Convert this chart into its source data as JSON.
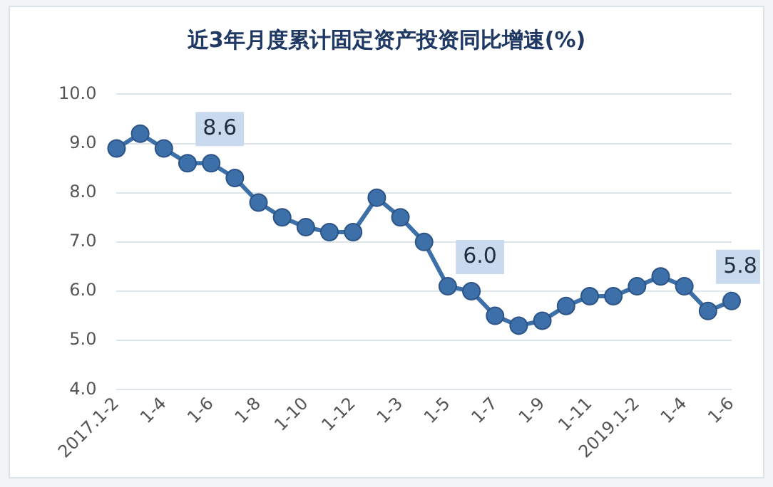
{
  "chart_data": {
    "type": "line",
    "title": "近3年月度累计固定资产投资同比增速(%)",
    "categories": [
      "2017.1-2",
      null,
      "1-4",
      null,
      "1-6",
      null,
      "1-8",
      null,
      "1-10",
      null,
      "1-12",
      null,
      "1-3",
      null,
      "1-5",
      null,
      "1-7",
      null,
      "1-9",
      null,
      "1-11",
      null,
      "2019.1-2",
      null,
      "1-4",
      null,
      "1-6"
    ],
    "series": [
      {
        "color": "#3d6fa8",
        "values": [
          8.9,
          9.2,
          8.9,
          8.6,
          8.6,
          8.3,
          7.8,
          7.5,
          7.3,
          7.2,
          7.2,
          7.9,
          7.5,
          7.0,
          6.1,
          6.0,
          5.5,
          5.3,
          5.4,
          5.7,
          5.9,
          5.9,
          6.1,
          6.3,
          6.1,
          5.6,
          5.8
        ],
        "value_labels": [
          null,
          null,
          null,
          null,
          "8.6",
          null,
          null,
          null,
          null,
          null,
          null,
          null,
          null,
          null,
          null,
          "6.0",
          null,
          null,
          null,
          null,
          null,
          null,
          null,
          null,
          null,
          null,
          "5.8"
        ]
      }
    ],
    "ylim": [
      4,
      10
    ],
    "yticks": [
      {
        "value": 4,
        "label": "4.0"
      },
      {
        "value": 5,
        "label": "5.0"
      },
      {
        "value": 6,
        "label": "6.0"
      },
      {
        "value": 7,
        "label": "7.0"
      },
      {
        "value": 8,
        "label": "8.0"
      },
      {
        "value": 9,
        "label": "9.0"
      },
      {
        "value": 10,
        "label": "10.0"
      }
    ],
    "grid": "y",
    "legend": false,
    "marker": "circle",
    "line_style": "solid"
  }
}
